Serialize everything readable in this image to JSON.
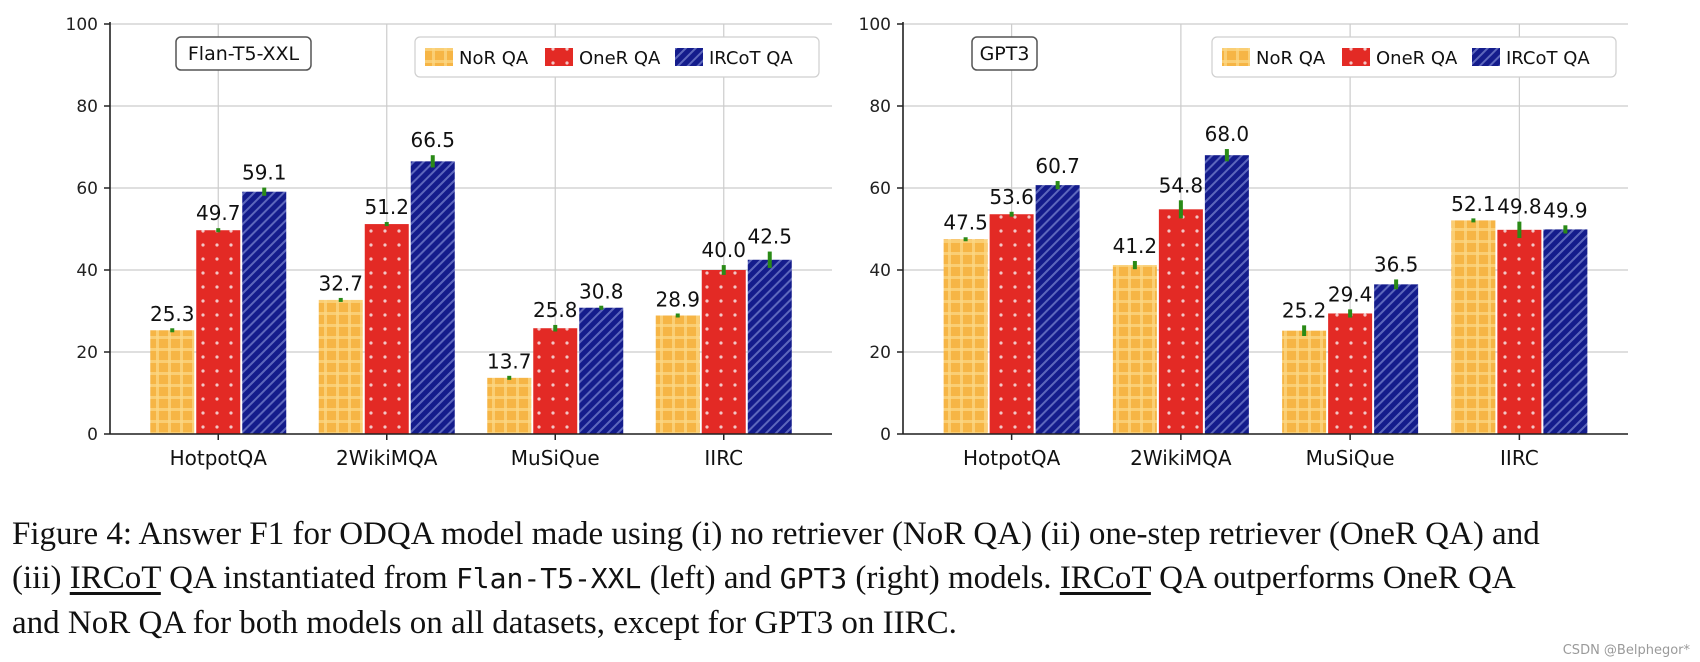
{
  "chart_data": [
    {
      "type": "bar",
      "title": "Flan-T5-XXL",
      "categories": [
        "HotpotQA",
        "2WikiMQA",
        "MuSiQue",
        "IIRC"
      ],
      "series": [
        {
          "name": "NoR QA",
          "values": [
            25.3,
            32.7,
            13.7,
            28.9
          ],
          "err": [
            0.3,
            0.3,
            0.3,
            0.3
          ]
        },
        {
          "name": "OneR QA",
          "values": [
            49.7,
            51.2,
            25.8,
            40.0
          ],
          "err": [
            0.5,
            0.5,
            0.8,
            1.2
          ]
        },
        {
          "name": "IRCoT QA",
          "values": [
            59.1,
            66.5,
            30.8,
            42.5
          ],
          "err": [
            1.0,
            1.5,
            0.3,
            2.0
          ]
        }
      ],
      "ylim": [
        0,
        100
      ],
      "yticks": [
        0,
        20,
        40,
        60,
        80,
        100
      ],
      "xlabel": "",
      "ylabel": "",
      "grid": true,
      "legend_position": "top-right"
    },
    {
      "type": "bar",
      "title": "GPT3",
      "categories": [
        "HotpotQA",
        "2WikiMQA",
        "MuSiQue",
        "IIRC"
      ],
      "series": [
        {
          "name": "NoR QA",
          "values": [
            47.5,
            41.2,
            25.2,
            52.1
          ],
          "err": [
            0.4,
            1.0,
            1.3,
            0.3
          ]
        },
        {
          "name": "OneR QA",
          "values": [
            53.6,
            54.8,
            29.4,
            49.8
          ],
          "err": [
            0.6,
            2.2,
            1.0,
            2.0
          ]
        },
        {
          "name": "IRCoT QA",
          "values": [
            60.7,
            68.0,
            36.5,
            49.9
          ],
          "err": [
            1.0,
            1.5,
            1.2,
            1.0
          ]
        }
      ],
      "ylim": [
        0,
        100
      ],
      "yticks": [
        0,
        20,
        40,
        60,
        80,
        100
      ],
      "xlabel": "",
      "ylabel": "",
      "grid": true,
      "legend_position": "top-right"
    }
  ],
  "colors": {
    "nor_fill": "#f6b545",
    "nor_stripe": "#fbd684",
    "oner_fill": "#e32a25",
    "oner_dot": "#f3c6c6",
    "ircot_fill": "#141c8c",
    "ircot_stripe": "#6f79c8",
    "error_bar": "#2a8a17",
    "grid": "#cccccc"
  },
  "caption": {
    "p1": "Figure 4: Answer F1 for ODQA model made using (i) no retriever (NoR QA) (ii) one-step retriever (OneR QA) and",
    "p2a": "(iii) ",
    "ircot1": "IRCoT",
    "p2b": " QA instantiated from ",
    "mono1": "Flan-T5-XXL",
    "p2c": " (left) and ",
    "mono2": "GPT3",
    "p2d": " (right) models. ",
    "ircot2": "IRCoT",
    "p2e": " QA outperforms OneR QA",
    "p3": "and NoR QA for both models on all datasets, except for GPT3 on IIRC."
  },
  "watermark": "CSDN @Belphegor*"
}
